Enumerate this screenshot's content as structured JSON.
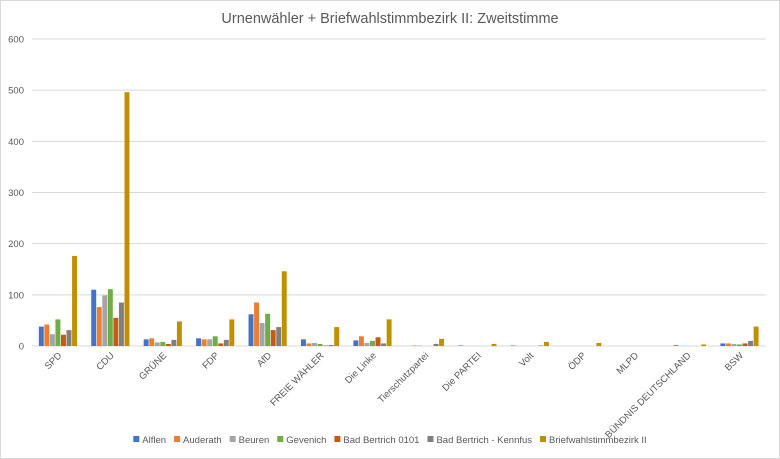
{
  "chart_data": {
    "type": "bar",
    "title": "Urnenwähler + Briefwahlstimmbezirk II: Zweitstimme",
    "xlabel": "",
    "ylabel": "",
    "ylim": [
      0,
      600
    ],
    "yticks": [
      0,
      100,
      200,
      300,
      400,
      500,
      600
    ],
    "grid": true,
    "legend_position": "bottom",
    "categories": [
      "SPD",
      "CDU",
      "GRÜNE",
      "FDP",
      "AfD",
      "FREIE WÄHLER",
      "Die Linke",
      "Tierschutzpartei",
      "Die PARTEI",
      "Volt",
      "ÖDP",
      "MLPD",
      "BÜNDNIS DEUTSCHLAND",
      "BSW"
    ],
    "series": [
      {
        "name": "Alflen",
        "color": "#4472c4",
        "values": [
          38,
          110,
          13,
          15,
          62,
          13,
          11,
          0,
          1,
          1,
          0,
          0,
          0,
          5
        ]
      },
      {
        "name": "Auderath",
        "color": "#ed7d31",
        "values": [
          42,
          76,
          15,
          13,
          85,
          5,
          19,
          1,
          0,
          0,
          0,
          0,
          2,
          5
        ]
      },
      {
        "name": "Beuren",
        "color": "#a5a5a5",
        "values": [
          23,
          99,
          7,
          13,
          45,
          6,
          6,
          1,
          0,
          0,
          0,
          0,
          0,
          4
        ]
      },
      {
        "name": "Gevenich",
        "color": "#70ad47",
        "values": [
          52,
          111,
          8,
          19,
          63,
          4,
          10,
          0,
          0,
          0,
          0,
          0,
          0,
          3
        ]
      },
      {
        "name": "Bad Bertrich 0101",
        "color": "#c55a11",
        "values": [
          22,
          55,
          4,
          5,
          31,
          1,
          17,
          0,
          0,
          0,
          0,
          0,
          0,
          5
        ]
      },
      {
        "name": "Bad Bertrich - Kennfus",
        "color": "#7f7f7f",
        "values": [
          31,
          85,
          12,
          12,
          37,
          2,
          5,
          4,
          0,
          1,
          0,
          0,
          0,
          10
        ]
      },
      {
        "name": "Briefwahlstimmbezirk II",
        "color": "#bf9000",
        "values": [
          176,
          496,
          48,
          52,
          146,
          37,
          52,
          14,
          4,
          8,
          6,
          0,
          3,
          38
        ]
      }
    ]
  }
}
